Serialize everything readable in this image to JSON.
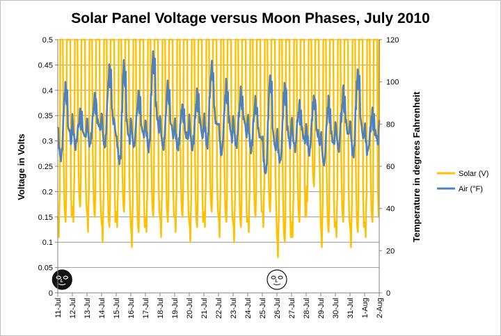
{
  "chart_data": {
    "type": "line",
    "title": "Solar Panel Voltage versus Moon Phases, July 2010",
    "ylabel": "Voltage in Volts",
    "y2label": "Temperature in degrees Fahrenheit",
    "ylim": [
      0,
      0.5
    ],
    "y2lim": [
      0,
      120
    ],
    "yticks": [
      "0",
      "0.05",
      "0.1",
      "0.15",
      "0.2",
      "0.25",
      "0.3",
      "0.35",
      "0.4",
      "0.45",
      "0.5"
    ],
    "y2ticks": [
      "0",
      "20",
      "40",
      "60",
      "80",
      "100",
      "120"
    ],
    "categories": [
      "11-Jul",
      "12-Jul",
      "13-Jul",
      "14-Jul",
      "15-Jul",
      "16-Jul",
      "17-Jul",
      "18-Jul",
      "19-Jul",
      "20-Jul",
      "21-Jul",
      "22-Jul",
      "23-Jul",
      "24-Jul",
      "25-Jul",
      "26-Jul",
      "27-Jul",
      "28-Jul",
      "29-Jul",
      "30-Jul",
      "31-Jul",
      "1-Aug",
      "2-Aug"
    ],
    "grid": true,
    "legend_position": "right",
    "moon_phases": [
      {
        "day": 11.3,
        "phase": "new moon"
      },
      {
        "day": 26.0,
        "phase": "full moon"
      }
    ],
    "series": [
      {
        "name": "Solar (V)",
        "axis": "left",
        "color": "#ffc000",
        "daily_peak": [
          0.5,
          0.5,
          0.5,
          0.5,
          0.5,
          0.5,
          0.5,
          0.5,
          0.5,
          0.5,
          0.5,
          0.5,
          0.5,
          0.5,
          0.5,
          0.5,
          0.5,
          0.5,
          0.5,
          0.5,
          0.5,
          0.5
        ],
        "daily_night_min": [
          0.11,
          0.14,
          0.12,
          0.1,
          0.13,
          0.09,
          0.12,
          0.11,
          0.12,
          0.1,
          0.13,
          0.11,
          0.1,
          0.12,
          0.13,
          0.07,
          0.11,
          0.18,
          0.09,
          0.11,
          0.09,
          0.11
        ]
      },
      {
        "name": "Air (°F)",
        "axis": "right",
        "color": "#4f81bd",
        "daily_max": [
          100,
          88,
          95,
          108,
          109,
          95,
          113,
          100,
          91,
          96,
          109,
          100,
          98,
          93,
          103,
          100,
          90,
          95,
          92,
          96,
          107,
          88
        ],
        "daily_min": [
          64,
          69,
          70,
          70,
          62,
          70,
          68,
          68,
          68,
          69,
          70,
          66,
          70,
          68,
          58,
          62,
          68,
          66,
          62,
          68,
          66,
          66
        ]
      }
    ]
  }
}
